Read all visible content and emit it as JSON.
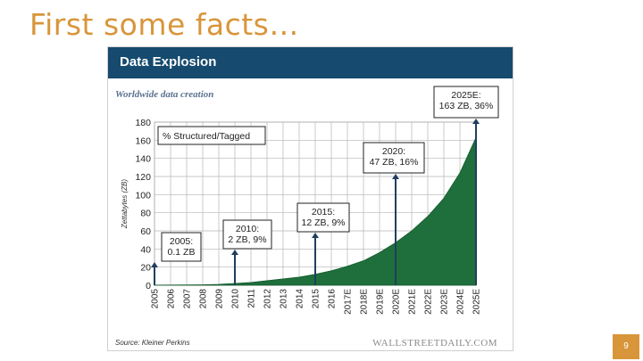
{
  "slide": {
    "title": "First some facts…",
    "page_number": "9"
  },
  "colors": {
    "title": "#d9953a",
    "header": "#164a6e",
    "area_fill": "#1e6f3b",
    "arrow": "#1f3f5e",
    "page_box": "#d9953a"
  },
  "chart_data": {
    "type": "area",
    "title": "Data Explosion",
    "subtitle": "Worldwide data creation",
    "ylabel": "Zettabytes (ZB)",
    "xlabel": "",
    "ylim": [
      0,
      180
    ],
    "yticks": [
      0,
      20,
      40,
      60,
      80,
      100,
      120,
      140,
      160,
      180
    ],
    "grid": true,
    "categories": [
      "2005",
      "2006",
      "2007",
      "2008",
      "2009",
      "2010",
      "2011",
      "2012",
      "2013",
      "2014",
      "2015",
      "2016",
      "2017E",
      "2018E",
      "2019E",
      "2020E",
      "2021E",
      "2022E",
      "2023E",
      "2024E",
      "2025E"
    ],
    "series": [
      {
        "values": [
          0.1,
          0.2,
          0.3,
          0.5,
          1,
          2,
          3,
          5,
          7,
          9,
          12,
          16,
          21,
          27,
          36,
          47,
          60,
          76,
          96,
          124,
          163
        ]
      }
    ],
    "legend_box": "% Structured/Tagged",
    "annotations": [
      {
        "lines": [
          "2005:",
          "0.1 ZB"
        ],
        "x": "2005",
        "y": 0.1
      },
      {
        "lines": [
          "2010:",
          "2 ZB, 9%"
        ],
        "x": "2010",
        "y": 2
      },
      {
        "lines": [
          "2015:",
          "12 ZB, 9%"
        ],
        "x": "2015",
        "y": 12
      },
      {
        "lines": [
          "2020:",
          "47 ZB, 16%"
        ],
        "x": "2020E",
        "y": 47
      },
      {
        "lines": [
          "2025E:",
          "163 ZB, 36%"
        ],
        "x": "2025E",
        "y": 163
      }
    ],
    "source": "Source: Kleiner Perkins",
    "brand": "WALLSTREETDAILY.COM"
  }
}
